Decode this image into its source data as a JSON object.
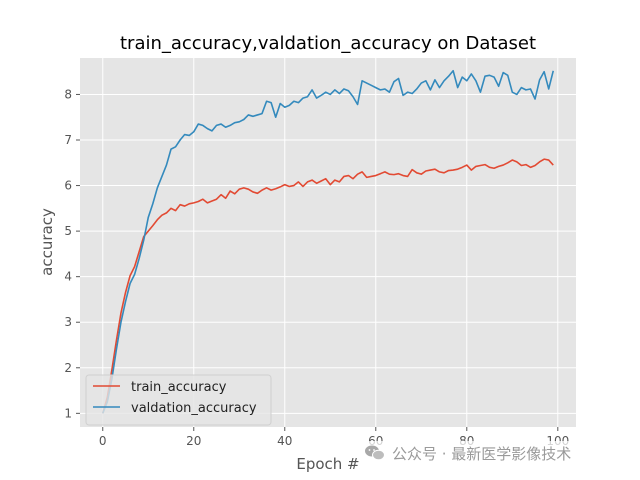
{
  "chart_data": {
    "type": "line",
    "title": "train_accuracy,valdation_accuracy on Dataset",
    "xlabel": "Epoch #",
    "ylabel": "accuracy",
    "xlim": [
      -5,
      104
    ],
    "ylim": [
      0.7,
      8.8
    ],
    "xticks": [
      0,
      20,
      40,
      60,
      80,
      100
    ],
    "yticks": [
      1,
      2,
      3,
      4,
      5,
      6,
      7,
      8
    ],
    "grid": true,
    "legend_position": "lower-left",
    "series": [
      {
        "name": "train_accuracy",
        "color": "#E24A33",
        "x": [
          0,
          1,
          2,
          3,
          4,
          5,
          6,
          7,
          8,
          9,
          10,
          11,
          12,
          13,
          14,
          15,
          16,
          17,
          18,
          19,
          20,
          21,
          22,
          23,
          24,
          25,
          26,
          27,
          28,
          29,
          30,
          31,
          32,
          33,
          34,
          35,
          36,
          37,
          38,
          39,
          40,
          41,
          42,
          43,
          44,
          45,
          46,
          47,
          48,
          49,
          50,
          51,
          52,
          53,
          54,
          55,
          56,
          57,
          58,
          59,
          60,
          61,
          62,
          63,
          64,
          65,
          66,
          67,
          68,
          69,
          70,
          71,
          72,
          73,
          74,
          75,
          76,
          77,
          78,
          79,
          80,
          81,
          82,
          83,
          84,
          85,
          86,
          87,
          88,
          89,
          90,
          91,
          92,
          93,
          94,
          95,
          96,
          97,
          98,
          99
        ],
        "values": [
          1.0,
          1.35,
          1.95,
          2.6,
          3.2,
          3.65,
          4.02,
          4.22,
          4.55,
          4.88,
          5.0,
          5.12,
          5.25,
          5.35,
          5.4,
          5.5,
          5.45,
          5.58,
          5.55,
          5.6,
          5.62,
          5.65,
          5.7,
          5.62,
          5.66,
          5.7,
          5.8,
          5.72,
          5.88,
          5.82,
          5.92,
          5.95,
          5.92,
          5.86,
          5.83,
          5.9,
          5.95,
          5.9,
          5.93,
          5.97,
          6.02,
          5.98,
          6.0,
          6.08,
          5.98,
          6.08,
          6.12,
          6.05,
          6.1,
          6.15,
          6.02,
          6.12,
          6.08,
          6.2,
          6.22,
          6.15,
          6.25,
          6.3,
          6.18,
          6.2,
          6.22,
          6.26,
          6.3,
          6.25,
          6.24,
          6.26,
          6.22,
          6.2,
          6.35,
          6.28,
          6.25,
          6.32,
          6.34,
          6.36,
          6.3,
          6.28,
          6.33,
          6.34,
          6.36,
          6.4,
          6.45,
          6.34,
          6.42,
          6.44,
          6.46,
          6.4,
          6.38,
          6.42,
          6.45,
          6.5,
          6.56,
          6.52,
          6.44,
          6.46,
          6.4,
          6.44,
          6.52,
          6.58,
          6.56,
          6.45
        ]
      },
      {
        "name": "valdation_accuracy",
        "color": "#348ABD",
        "x": [
          0,
          1,
          2,
          3,
          4,
          5,
          6,
          7,
          8,
          9,
          10,
          11,
          12,
          13,
          14,
          15,
          16,
          17,
          18,
          19,
          20,
          21,
          22,
          23,
          24,
          25,
          26,
          27,
          28,
          29,
          30,
          31,
          32,
          33,
          34,
          35,
          36,
          37,
          38,
          39,
          40,
          41,
          42,
          43,
          44,
          45,
          46,
          47,
          48,
          49,
          50,
          51,
          52,
          53,
          54,
          55,
          56,
          57,
          58,
          59,
          60,
          61,
          62,
          63,
          64,
          65,
          66,
          67,
          68,
          69,
          70,
          71,
          72,
          73,
          74,
          75,
          76,
          77,
          78,
          79,
          80,
          81,
          82,
          83,
          84,
          85,
          86,
          87,
          88,
          89,
          90,
          91,
          92,
          93,
          94,
          95,
          96,
          97,
          98,
          99
        ],
        "values": [
          1.0,
          1.25,
          1.75,
          2.4,
          3.0,
          3.45,
          3.85,
          4.05,
          4.4,
          4.8,
          5.3,
          5.6,
          5.95,
          6.2,
          6.45,
          6.8,
          6.85,
          7.0,
          7.12,
          7.1,
          7.18,
          7.35,
          7.32,
          7.25,
          7.2,
          7.32,
          7.35,
          7.28,
          7.32,
          7.38,
          7.4,
          7.45,
          7.55,
          7.52,
          7.55,
          7.58,
          7.85,
          7.82,
          7.5,
          7.8,
          7.72,
          7.76,
          7.85,
          7.82,
          7.92,
          7.95,
          8.1,
          7.92,
          7.98,
          8.05,
          8.0,
          8.1,
          8.02,
          8.12,
          8.08,
          7.95,
          7.78,
          8.3,
          8.25,
          8.2,
          8.15,
          8.1,
          8.12,
          8.05,
          8.28,
          8.35,
          7.98,
          8.05,
          8.02,
          8.12,
          8.25,
          8.3,
          8.1,
          8.32,
          8.15,
          8.3,
          8.4,
          8.52,
          8.15,
          8.38,
          8.3,
          8.45,
          8.3,
          8.05,
          8.4,
          8.42,
          8.38,
          8.18,
          8.48,
          8.42,
          8.05,
          8.0,
          8.15,
          8.1,
          8.12,
          7.9,
          8.32,
          8.5,
          8.12,
          8.52
        ]
      }
    ]
  },
  "watermark": {
    "icon": "wechat-icon",
    "text": "公众号 · 最新医学影像技术"
  }
}
